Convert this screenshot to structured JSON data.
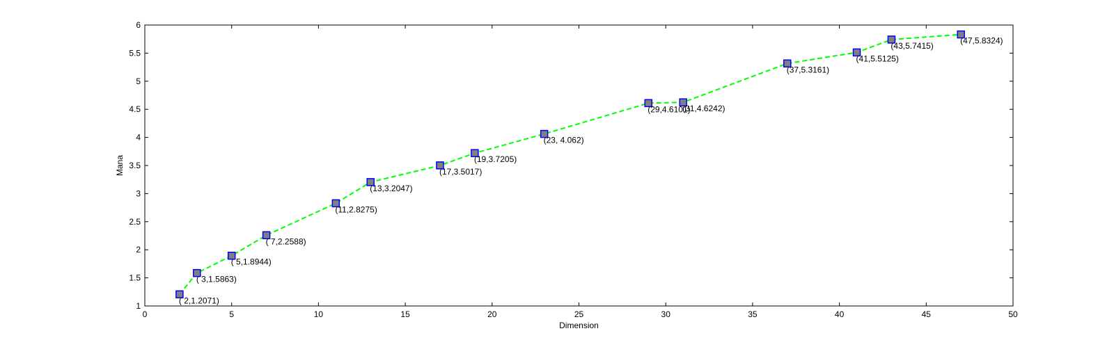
{
  "chart_data": {
    "type": "line",
    "title": "",
    "xlabel": "Dimension",
    "ylabel": "Mana",
    "xlim": [
      0,
      50
    ],
    "ylim": [
      1,
      6
    ],
    "xticks": [
      0,
      5,
      10,
      15,
      20,
      25,
      30,
      35,
      40,
      45,
      50
    ],
    "yticks": [
      1,
      1.5,
      2,
      2.5,
      3,
      3.5,
      4,
      4.5,
      5,
      5.5,
      6
    ],
    "grid": false,
    "legend": "none",
    "series": [
      {
        "x": [
          2,
          3,
          5,
          7,
          11,
          13,
          17,
          19,
          23,
          29,
          31,
          37,
          41,
          43,
          47
        ],
        "y": [
          1.2071,
          1.5863,
          1.8944,
          2.2588,
          2.8275,
          3.2047,
          3.5017,
          3.7205,
          4.062,
          4.6101,
          4.6242,
          5.3161,
          5.5125,
          5.7415,
          5.8324
        ],
        "line_color": "#00ff00",
        "line_style": "dashed",
        "marker": "square",
        "marker_face": "#808080",
        "marker_edge": "#0000ff"
      }
    ],
    "data_labels": [
      "( 2,1.2071)",
      "( 3,1.5863)",
      "( 5,1.8944)",
      "( 7,2.2588)",
      "(11,2.8275)",
      "(13,3.2047)",
      "(17,3.5017)",
      "(19,3.7205)",
      "(23, 4.062)",
      "(29,4.6101)",
      "(31,4.6242)",
      "(37,5.3161)",
      "(41,5.5125)",
      "(43,5.7415)",
      "(47,5.8324)"
    ]
  }
}
